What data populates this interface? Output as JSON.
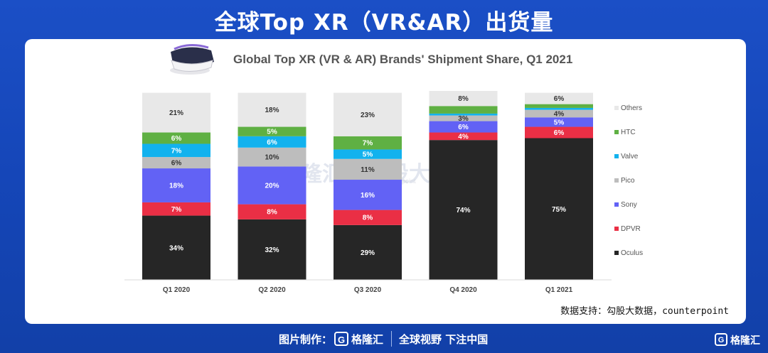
{
  "page": {
    "title": "全球Top XR（VR&AR）出货量",
    "source": "数据支持：勾股大数据，counterpoint",
    "footer_label": "图片制作：",
    "footer_brand": "格隆汇",
    "footer_slogan": "全球视野 下注中国",
    "corner_brand": "格隆汇",
    "watermark": "格隆汇 | 勾股大数据",
    "watermark_small": "counterpoint"
  },
  "chart_data": {
    "type": "bar",
    "stacked": true,
    "title": "Global Top XR (VR & AR) Brands' Shipment Share, Q1 2021",
    "xlabel": "",
    "ylabel": "",
    "ylim": [
      0,
      100
    ],
    "categories": [
      "Q1 2020",
      "Q2 2020",
      "Q3 2020",
      "Q4 2020",
      "Q1 2021"
    ],
    "series": [
      {
        "name": "Oculus",
        "color": "#262626",
        "values": [
          34,
          32,
          29,
          74,
          75
        ],
        "labels": [
          "34%",
          "32%",
          "29%",
          "74%",
          "75%"
        ]
      },
      {
        "name": "DPVR",
        "color": "#ea2f45",
        "values": [
          7,
          8,
          8,
          4,
          6
        ],
        "labels": [
          "7%",
          "8%",
          "8%",
          "4%",
          "6%"
        ]
      },
      {
        "name": "Sony",
        "color": "#6262f5",
        "values": [
          18,
          20,
          16,
          6,
          5
        ],
        "labels": [
          "18%",
          "20%",
          "16%",
          "6%",
          "5%"
        ]
      },
      {
        "name": "Pico",
        "color": "#bdbdbd",
        "values": [
          6,
          10,
          11,
          3,
          4
        ],
        "labels": [
          "6%",
          "10%",
          "11%",
          "3%",
          "4%"
        ]
      },
      {
        "name": "Valve",
        "color": "#12b2ee",
        "values": [
          7,
          6,
          5,
          1,
          1
        ],
        "labels": [
          "7%",
          "6%",
          "5%",
          "",
          ""
        ]
      },
      {
        "name": "HTC",
        "color": "#5fb043",
        "values": [
          6,
          5,
          7,
          4,
          2
        ],
        "labels": [
          "6%",
          "5%",
          "7%",
          "",
          ""
        ]
      },
      {
        "name": "Others",
        "color": "#e8e8e8",
        "values": [
          21,
          18,
          23,
          8,
          6
        ],
        "labels": [
          "21%",
          "18%",
          "23%",
          "8%",
          "6%"
        ]
      }
    ],
    "legend_position": "right",
    "legend_order": [
      "Others",
      "HTC",
      "Valve",
      "Pico",
      "Sony",
      "DPVR",
      "Oculus"
    ],
    "grid": false
  }
}
